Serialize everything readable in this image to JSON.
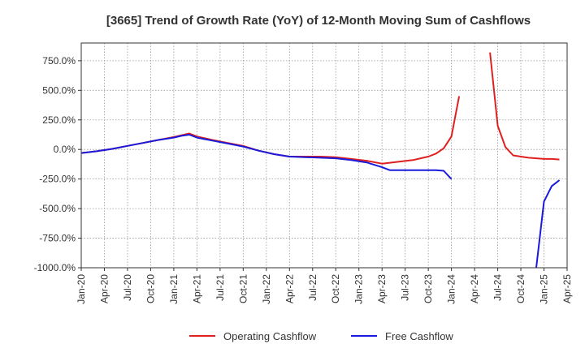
{
  "chart_data": {
    "type": "line",
    "title": "[3665]  Trend of Growth Rate (YoY) of 12-Month Moving Sum of Cashflows",
    "xlabel": "",
    "ylabel": "",
    "x_range": [
      "2020-01",
      "2025-04"
    ],
    "x_tick_labels": [
      "Jan-20",
      "Apr-20",
      "Jul-20",
      "Oct-20",
      "Jan-21",
      "Apr-21",
      "Jul-21",
      "Oct-21",
      "Jan-22",
      "Apr-22",
      "Jul-22",
      "Oct-22",
      "Jan-23",
      "Apr-23",
      "Jul-23",
      "Oct-23",
      "Jan-24",
      "Apr-24",
      "Jul-24",
      "Oct-24",
      "Jan-25",
      "Apr-25"
    ],
    "y_ticks": [
      750,
      500,
      250,
      0,
      -250,
      -500,
      -750,
      -1000
    ],
    "y_tick_labels": [
      "750.0%",
      "500.0%",
      "250.0%",
      "0.0%",
      "-250.0%",
      "-500.0%",
      "-750.0%",
      "-1000.0%"
    ],
    "ylim": [
      -1000,
      900
    ],
    "grid": true,
    "legend_position": "bottom",
    "series": [
      {
        "name": "Operating Cashflow",
        "color": "#e02020",
        "points": [
          [
            "2020-01",
            -30
          ],
          [
            "2020-03",
            -15
          ],
          [
            "2020-05",
            5
          ],
          [
            "2020-07",
            30
          ],
          [
            "2020-09",
            55
          ],
          [
            "2020-11",
            80
          ],
          [
            "2021-01",
            105
          ],
          [
            "2021-02",
            120
          ],
          [
            "2021-03",
            135
          ],
          [
            "2021-04",
            110
          ],
          [
            "2021-06",
            80
          ],
          [
            "2021-08",
            55
          ],
          [
            "2021-10",
            30
          ],
          [
            "2021-12",
            -10
          ],
          [
            "2022-02",
            -40
          ],
          [
            "2022-04",
            -60
          ],
          [
            "2022-06",
            -60
          ],
          [
            "2022-08",
            -60
          ],
          [
            "2022-10",
            -65
          ],
          [
            "2022-12",
            -80
          ],
          [
            "2023-02",
            -95
          ],
          [
            "2023-04",
            -120
          ],
          [
            "2023-06",
            -105
          ],
          [
            "2023-08",
            -90
          ],
          [
            "2023-09",
            -75
          ],
          [
            "2023-10",
            -60
          ],
          [
            "2023-11",
            -35
          ],
          [
            "2023-12",
            10
          ],
          [
            "2024-01",
            110
          ],
          [
            "2024-02",
            450
          ],
          [
            null,
            null
          ],
          [
            "2024-06",
            820
          ],
          [
            "2024-07",
            200
          ],
          [
            "2024-08",
            20
          ],
          [
            "2024-09",
            -50
          ],
          [
            "2024-10",
            -60
          ],
          [
            "2024-11",
            -70
          ],
          [
            "2024-12",
            -75
          ],
          [
            "2025-01",
            -80
          ],
          [
            "2025-02",
            -80
          ],
          [
            "2025-03",
            -85
          ]
        ]
      },
      {
        "name": "Free Cashflow",
        "color": "#1a1adc",
        "points": [
          [
            "2020-01",
            -30
          ],
          [
            "2020-03",
            -15
          ],
          [
            "2020-05",
            5
          ],
          [
            "2020-07",
            30
          ],
          [
            "2020-09",
            55
          ],
          [
            "2020-11",
            80
          ],
          [
            "2021-01",
            100
          ],
          [
            "2021-02",
            115
          ],
          [
            "2021-03",
            125
          ],
          [
            "2021-04",
            100
          ],
          [
            "2021-06",
            75
          ],
          [
            "2021-08",
            50
          ],
          [
            "2021-10",
            25
          ],
          [
            "2021-12",
            -10
          ],
          [
            "2022-02",
            -40
          ],
          [
            "2022-04",
            -60
          ],
          [
            "2022-06",
            -65
          ],
          [
            "2022-08",
            -70
          ],
          [
            "2022-10",
            -75
          ],
          [
            "2022-12",
            -90
          ],
          [
            "2023-02",
            -110
          ],
          [
            "2023-04",
            -150
          ],
          [
            "2023-05",
            -175
          ],
          [
            "2023-07",
            -175
          ],
          [
            "2023-09",
            -175
          ],
          [
            "2023-11",
            -175
          ],
          [
            "2023-12",
            -180
          ],
          [
            "2024-01",
            -250
          ],
          [
            null,
            null
          ],
          [
            "2024-12",
            -1000
          ],
          [
            "2025-01",
            -440
          ],
          [
            "2025-02",
            -310
          ],
          [
            "2025-03",
            -260
          ]
        ]
      }
    ]
  }
}
